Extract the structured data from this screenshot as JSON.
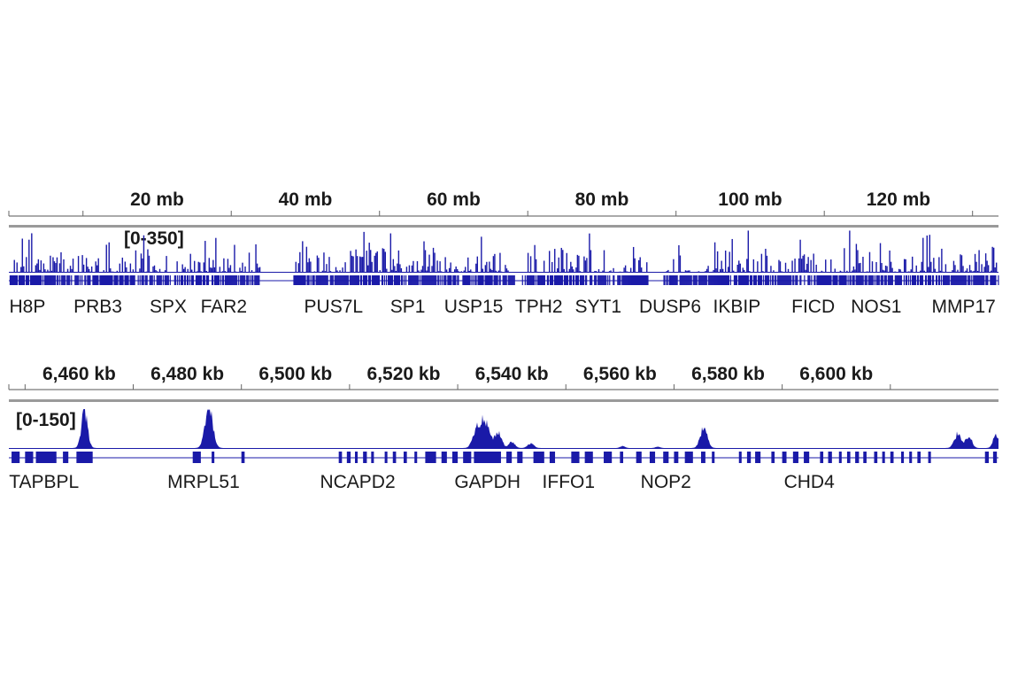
{
  "chart_data": [
    {
      "type": "area",
      "panel": "chromosome-overview",
      "x_unit": "mb",
      "xlim": [
        0,
        133.5
      ],
      "ticks": [
        {
          "value": 20,
          "label": "20 mb"
        },
        {
          "value": 40,
          "label": "40 mb"
        },
        {
          "value": 60,
          "label": "60 mb"
        },
        {
          "value": 80,
          "label": "80 mb"
        },
        {
          "value": 100,
          "label": "100 mb"
        },
        {
          "value": 120,
          "label": "120 mb"
        }
      ],
      "data_range_label": "[0-350]",
      "ylim": [
        0,
        350
      ],
      "signal_color": "#1a1aa8",
      "gene_color": "#1a1aa8",
      "genes": [
        {
          "name": "H8P",
          "pos": 2.5
        },
        {
          "name": "PRB3",
          "pos": 12.0
        },
        {
          "name": "SPX",
          "pos": 21.5
        },
        {
          "name": "FAR2",
          "pos": 29.0
        },
        {
          "name": "PUS7L",
          "pos": 43.8
        },
        {
          "name": "SP1",
          "pos": 53.8
        },
        {
          "name": "USP15",
          "pos": 62.7
        },
        {
          "name": "TPH2",
          "pos": 71.5
        },
        {
          "name": "SYT1",
          "pos": 79.5
        },
        {
          "name": "DUSP6",
          "pos": 89.2
        },
        {
          "name": "IKBIP",
          "pos": 98.2
        },
        {
          "name": "FICD",
          "pos": 108.5
        },
        {
          "name": "NOS1",
          "pos": 117.0
        },
        {
          "name": "MMP17",
          "pos": 128.8
        }
      ]
    },
    {
      "type": "area",
      "panel": "zoomed-region",
      "x_unit": "kb",
      "xlim": [
        6447,
        6630
      ],
      "ticks": [
        {
          "value": 6460,
          "label": "6,460 kb"
        },
        {
          "value": 6480,
          "label": "6,480 kb"
        },
        {
          "value": 6500,
          "label": "6,500 kb"
        },
        {
          "value": 6520,
          "label": "6,520 kb"
        },
        {
          "value": 6540,
          "label": "6,540 kb"
        },
        {
          "value": 6560,
          "label": "6,560 kb"
        },
        {
          "value": 6580,
          "label": "6,580 kb"
        },
        {
          "value": 6600,
          "label": "6,600 kb"
        }
      ],
      "data_range_label": "[0-150]",
      "ylim": [
        0,
        150
      ],
      "signal_color": "#1a1aa8",
      "gene_color": "#1a1aa8",
      "peaks": [
        {
          "pos": 6461.0,
          "height": 138,
          "width": 0.8
        },
        {
          "pos": 6484.0,
          "height": 145,
          "width": 1.0
        },
        {
          "pos": 6533.5,
          "height": 60,
          "width": 1.0
        },
        {
          "pos": 6535.0,
          "height": 95,
          "width": 1.2
        },
        {
          "pos": 6537.5,
          "height": 55,
          "width": 0.9
        },
        {
          "pos": 6540.0,
          "height": 22,
          "width": 0.8
        },
        {
          "pos": 6543.5,
          "height": 18,
          "width": 0.8
        },
        {
          "pos": 6560.5,
          "height": 8,
          "width": 0.6
        },
        {
          "pos": 6567.0,
          "height": 5,
          "width": 0.6
        },
        {
          "pos": 6575.5,
          "height": 78,
          "width": 0.9
        },
        {
          "pos": 6622.5,
          "height": 55,
          "width": 0.9
        },
        {
          "pos": 6624.5,
          "height": 45,
          "width": 0.8
        },
        {
          "pos": 6629.5,
          "height": 52,
          "width": 0.7
        }
      ],
      "genes": [
        {
          "name": "TAPBPL",
          "pos": 6453.5
        },
        {
          "name": "MRPL51",
          "pos": 6483.0
        },
        {
          "name": "NCAPD2",
          "pos": 6511.5
        },
        {
          "name": "GAPDH",
          "pos": 6535.5
        },
        {
          "name": "IFFO1",
          "pos": 6550.5
        },
        {
          "name": "NOP2",
          "pos": 6568.5
        },
        {
          "name": "CHD4",
          "pos": 6595.0
        }
      ]
    }
  ]
}
